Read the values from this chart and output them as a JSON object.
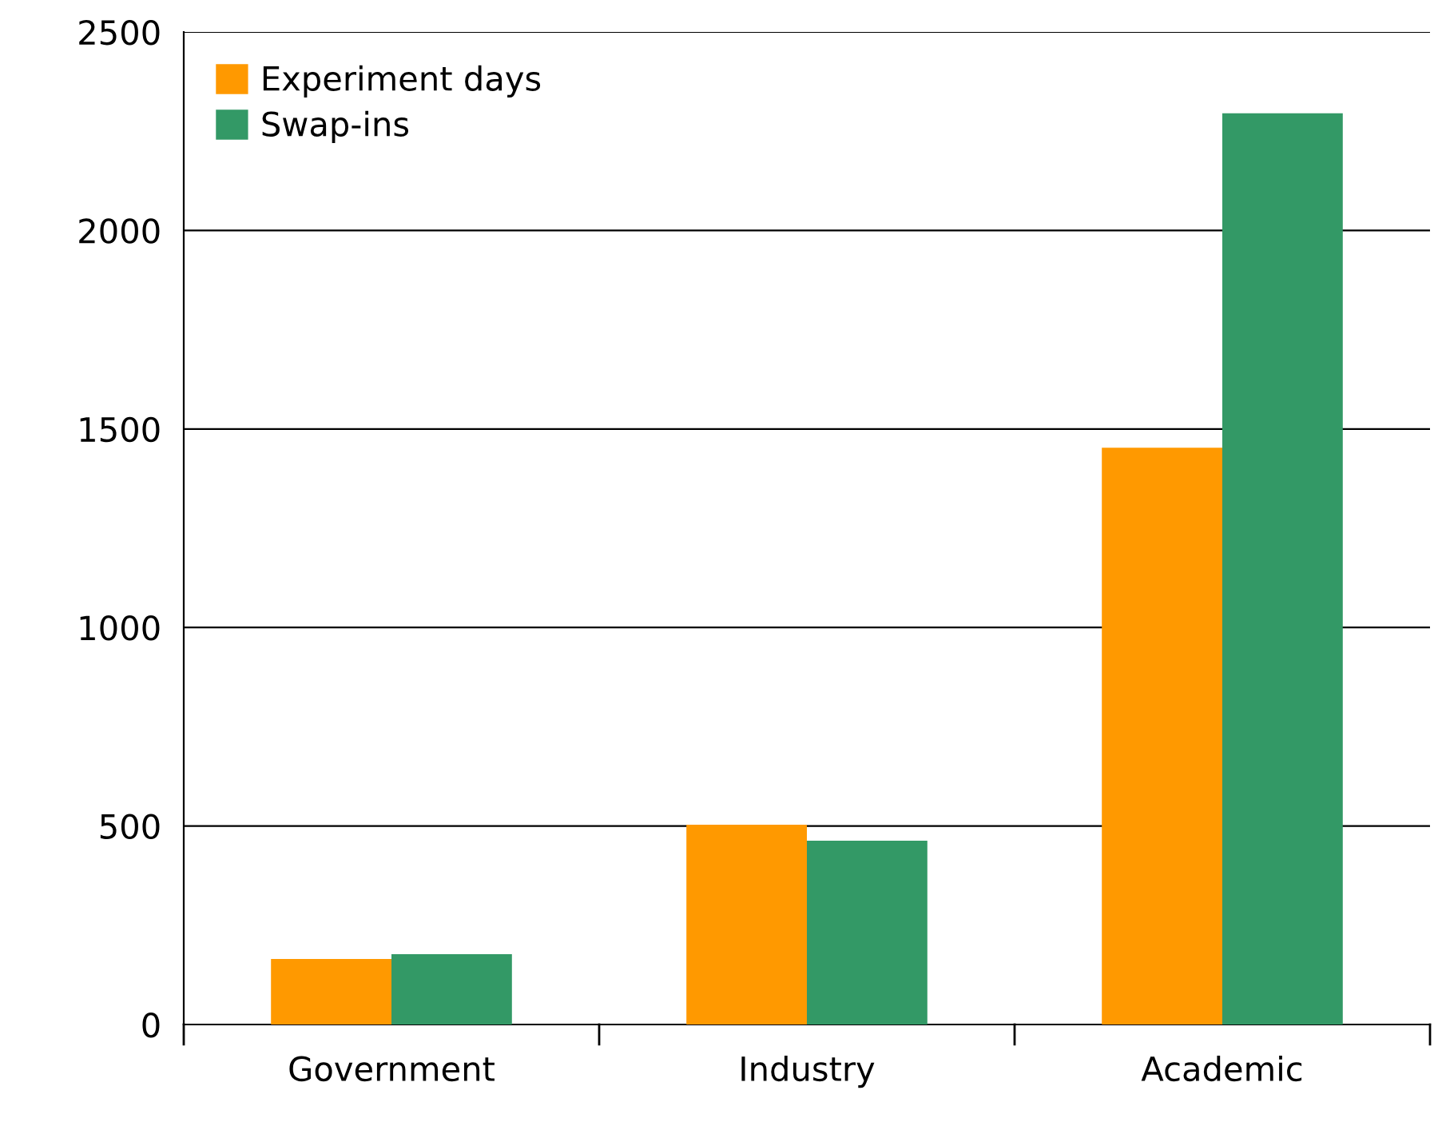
{
  "chart_data": {
    "type": "bar",
    "categories": [
      "Government",
      "Industry",
      "Academic"
    ],
    "series": [
      {
        "name": "Experiment days",
        "color": "#ff9900",
        "values": [
          165,
          503,
          1453
        ]
      },
      {
        "name": "Swap-ins",
        "color": "#339966",
        "values": [
          177,
          463,
          2295
        ]
      }
    ],
    "ylim": [
      0,
      2500
    ],
    "yticks": [
      0,
      500,
      1000,
      1500,
      2000,
      2500
    ],
    "grid": "y",
    "legend": "top left"
  }
}
